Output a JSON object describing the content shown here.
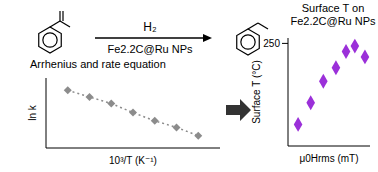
{
  "reaction": {
    "reagent": "H₂",
    "catalyst": "Fe2.2C@Ru NPs"
  },
  "chart_data": [
    {
      "type": "line",
      "title": "Arrhenius and rate equation",
      "x_label": "10³/T (K⁻¹)",
      "y_label": "ln k",
      "x": [
        1,
        2,
        3,
        4,
        5,
        6,
        7
      ],
      "values": [
        7,
        6.2,
        5.4,
        4.3,
        3.3,
        2.5,
        1.5
      ],
      "xlim": [
        0,
        8
      ],
      "ylim": [
        0,
        8.5
      ],
      "tick_labels": false,
      "color": "#8c8c8c",
      "marker": "diamond",
      "line_style": "dotted"
    },
    {
      "type": "scatter",
      "title": "Surface T on Fe2.2C@Ru NPs",
      "x_label": "μ0Hrms (mT)",
      "y_label": "Surface T (°C)",
      "x": [
        8,
        18,
        28,
        38,
        46,
        53,
        61
      ],
      "values": [
        100,
        140,
        180,
        205,
        235,
        245,
        225
      ],
      "xlim": [
        0,
        65
      ],
      "ylim": [
        60,
        260
      ],
      "yticks": [
        250
      ],
      "tick_labels": "y",
      "color": "#9b30d9",
      "marker": "diamond"
    }
  ]
}
